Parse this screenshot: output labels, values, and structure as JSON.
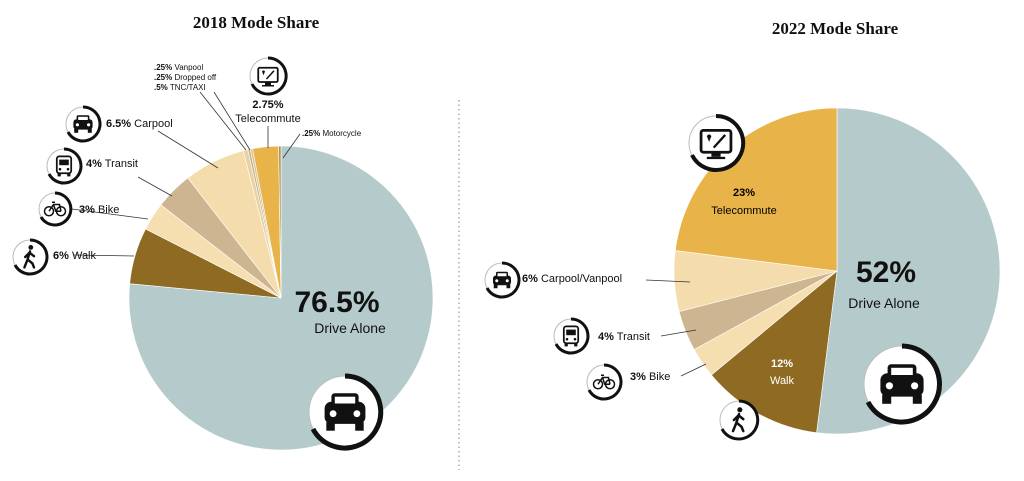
{
  "chart_data": [
    {
      "type": "pie",
      "title": "2018 Mode Share",
      "slices": [
        {
          "label": "Drive Alone",
          "value": 76.5,
          "display": "76.5%",
          "color": "#b5cbcb",
          "icon": "car-icon"
        },
        {
          "label": "Walk",
          "value": 6,
          "display": "6%",
          "color": "#8e6a22",
          "icon": "walk-icon"
        },
        {
          "label": "Bike",
          "value": 3,
          "display": "3%",
          "color": "#f5deb0",
          "icon": "bike-icon"
        },
        {
          "label": "Transit",
          "value": 4,
          "display": "4%",
          "color": "#cdb591",
          "icon": "bus-icon"
        },
        {
          "label": "Carpool",
          "value": 6.5,
          "display": "6.5%",
          "color": "#f5dcac",
          "icon": "car-icon"
        },
        {
          "label": "TNC/TAXI",
          "value": 0.5,
          "display": ".5%",
          "color": "#e8d2a3"
        },
        {
          "label": "Dropped off",
          "value": 0.25,
          "display": ".25%",
          "color": "#c7b285"
        },
        {
          "label": "Vanpool",
          "value": 0.25,
          "display": ".25%",
          "color": "#d9c39a"
        },
        {
          "label": "Telecommute",
          "value": 2.75,
          "display": "2.75%",
          "color": "#e8b449",
          "icon": "telecommute-icon"
        },
        {
          "label": "Motorcycle",
          "value": 0.25,
          "display": ".25%",
          "color": "#b08d4a"
        }
      ]
    },
    {
      "type": "pie",
      "title": "2022 Mode Share",
      "slices": [
        {
          "label": "Drive Alone",
          "value": 52,
          "display": "52%",
          "color": "#b5cbcb",
          "icon": "car-icon"
        },
        {
          "label": "Walk",
          "value": 12,
          "display": "12%",
          "color": "#8e6a22",
          "icon": "walk-icon"
        },
        {
          "label": "Bike",
          "value": 3,
          "display": "3%",
          "color": "#f5deb0",
          "icon": "bike-icon"
        },
        {
          "label": "Transit",
          "value": 4,
          "display": "4%",
          "color": "#cdb591",
          "icon": "bus-icon"
        },
        {
          "label": "Carpool/Vanpool",
          "value": 6,
          "display": "6%",
          "color": "#f5dcac",
          "icon": "car-icon"
        },
        {
          "label": "Telecommute",
          "value": 23,
          "display": "23%",
          "color": "#e8b449",
          "icon": "telecommute-icon"
        }
      ]
    }
  ]
}
